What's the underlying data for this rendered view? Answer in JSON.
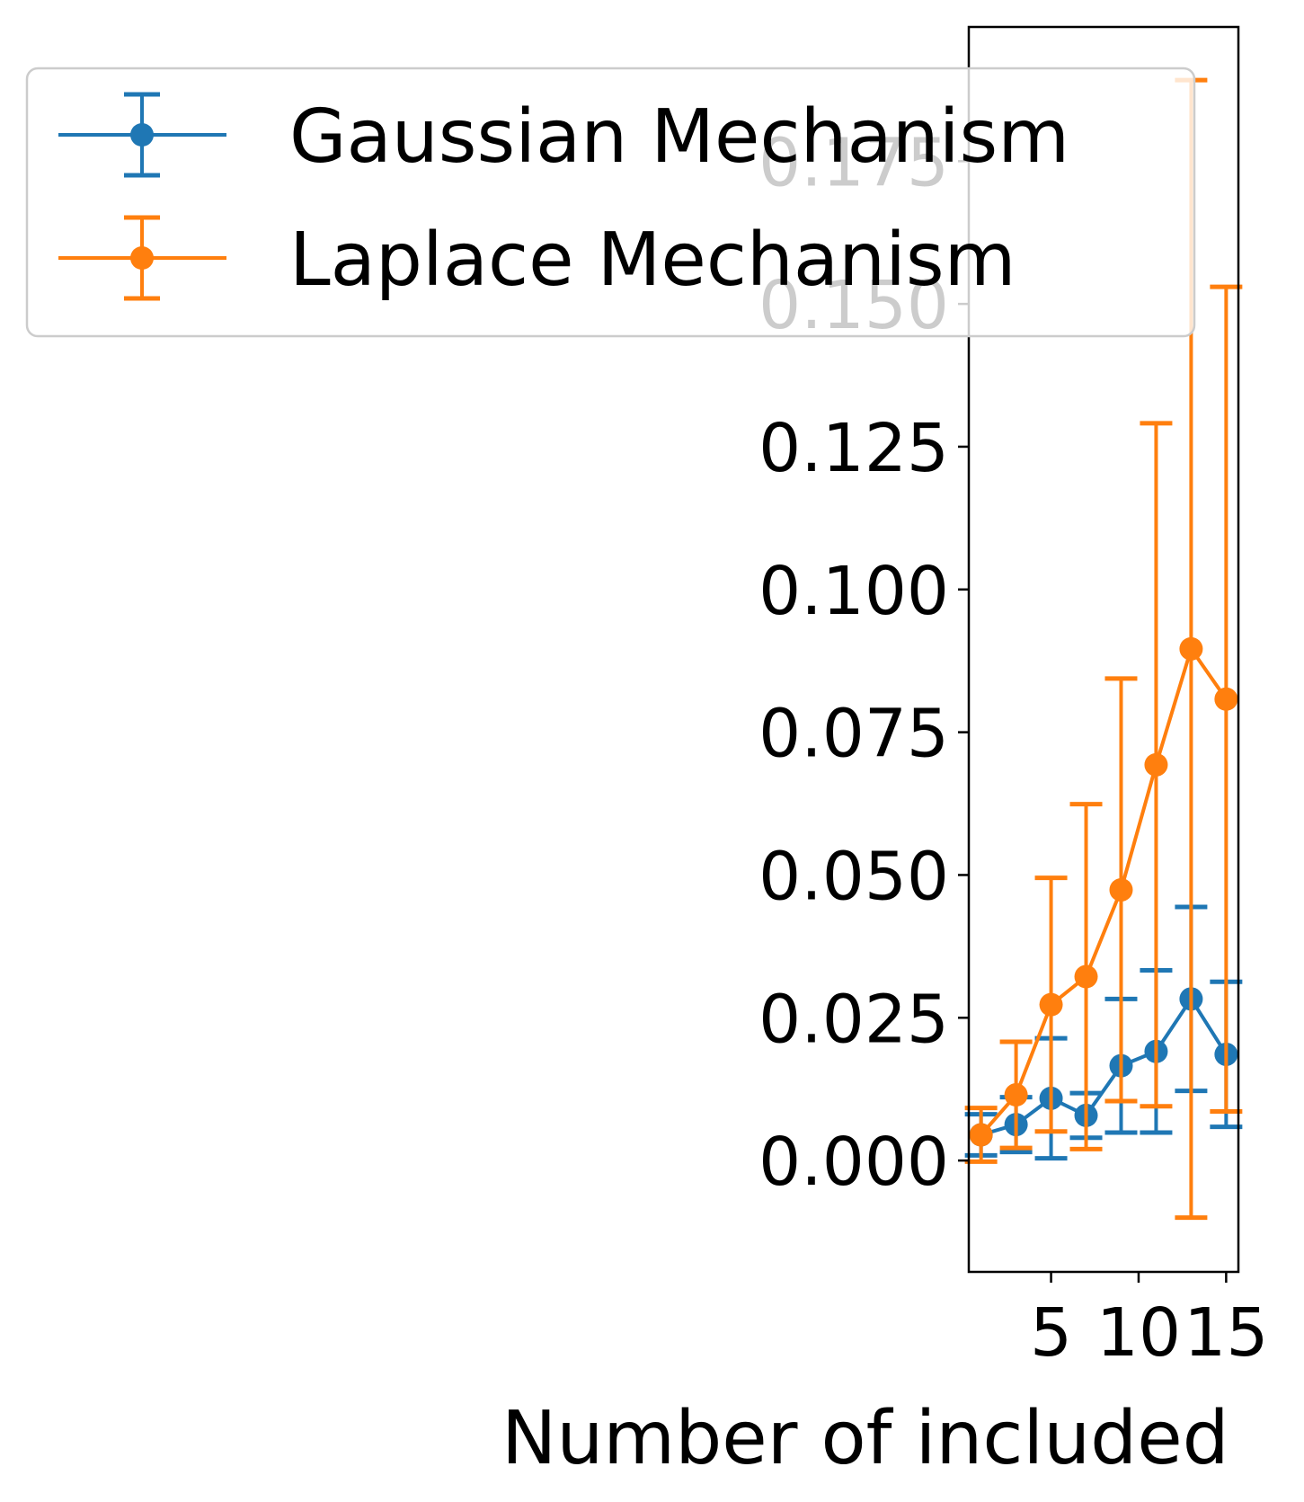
{
  "chart_data": {
    "type": "line",
    "xlabel": "Number of included",
    "ylabel": "",
    "x": [
      1,
      3,
      5,
      7,
      9,
      11,
      13,
      15
    ],
    "xticks": [
      5,
      10,
      15
    ],
    "xtick_labels": [
      "5",
      "10",
      "15"
    ],
    "xlim": [
      0.3,
      15.7
    ],
    "yticks": [
      0.0,
      0.025,
      0.05,
      0.075,
      0.1,
      0.125,
      0.15,
      0.175
    ],
    "ytick_labels": [
      "0.000",
      "0.025",
      "0.050",
      "0.075",
      "0.100",
      "0.125",
      "0.150",
      "0.175"
    ],
    "ylim": [
      -0.0195,
      0.1985
    ],
    "legend_position": "top-left",
    "series": [
      {
        "name": "Gaussian Mechanism",
        "color": "#1f77b4",
        "y": [
          0.0045,
          0.0063,
          0.0109,
          0.0079,
          0.0166,
          0.0191,
          0.0283,
          0.0186
        ],
        "err": [
          0.0036,
          0.0048,
          0.0105,
          0.0039,
          0.0117,
          0.0142,
          0.0161,
          0.0127
        ]
      },
      {
        "name": "Laplace Mechanism",
        "color": "#ff7f0e",
        "y": [
          0.0045,
          0.0115,
          0.0273,
          0.0322,
          0.0474,
          0.0693,
          0.0896,
          0.0808
        ],
        "err": [
          0.0047,
          0.0093,
          0.0222,
          0.0302,
          0.037,
          0.0598,
          0.0996,
          0.0722
        ]
      }
    ]
  }
}
